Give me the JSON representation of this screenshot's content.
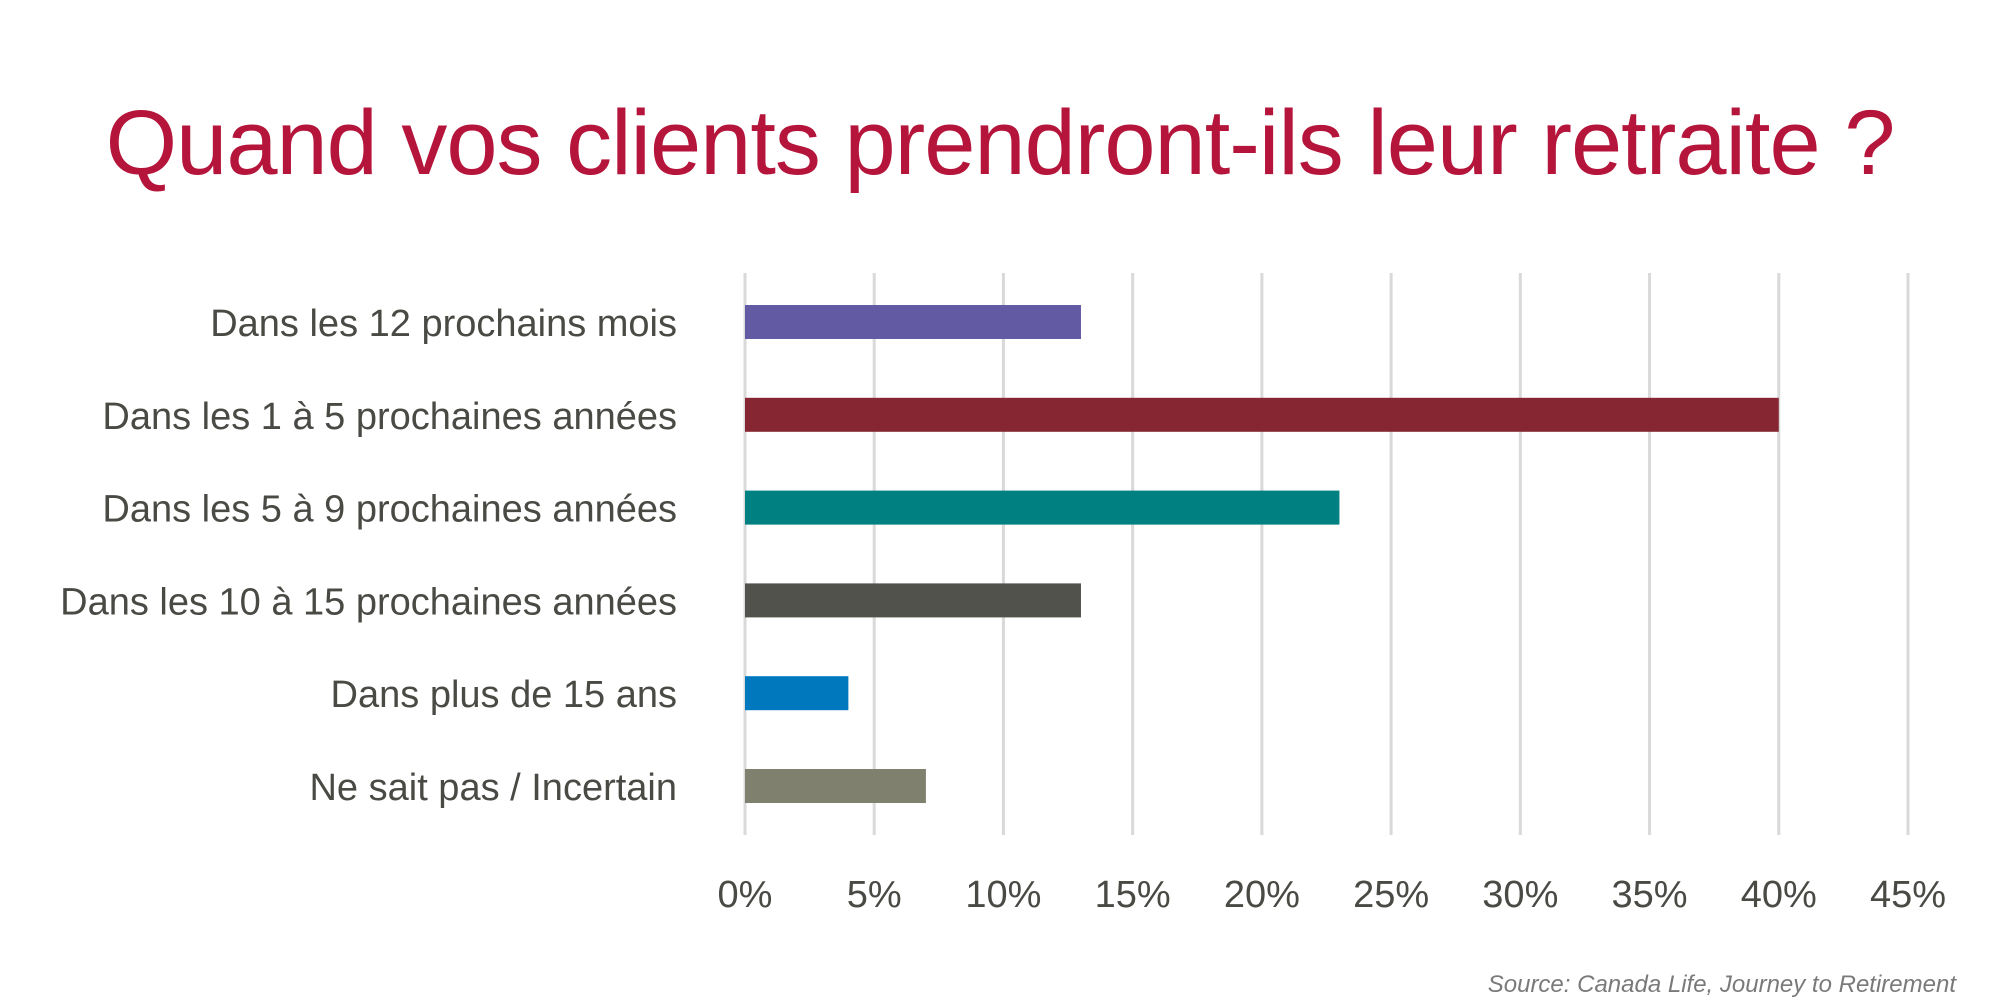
{
  "chart_data": {
    "type": "bar",
    "orientation": "horizontal",
    "title": "Quand vos clients prendront-ils leur retraite ?",
    "xlabel": "",
    "ylabel": "",
    "xlim": [
      0,
      45
    ],
    "x_ticks": [
      "0%",
      "5%",
      "10%",
      "15%",
      "20%",
      "25%",
      "30%",
      "35%",
      "40%",
      "45%"
    ],
    "x_tick_values": [
      0,
      5,
      10,
      15,
      20,
      25,
      30,
      35,
      40,
      45
    ],
    "grid": "vertical",
    "legend": "none",
    "categories": [
      "Dans les 12 prochains mois",
      "Dans les 1 à 5 prochaines années",
      "Dans les 5 à 9 prochaines années",
      "Dans les 10 à 15 prochaines années",
      "Dans plus de 15 ans",
      "Ne sait pas / Incertain"
    ],
    "values": [
      13,
      40,
      23,
      13,
      4,
      7
    ],
    "colors": [
      "#625ba3",
      "#862633",
      "#008080",
      "#51524b",
      "#0078be",
      "#80806f"
    ],
    "source": "Source: Canada Life, Journey to Retirement"
  },
  "style": {
    "title_color": "#b5153a",
    "label_color": "#4a4a45",
    "grid_color": "#d9d9d9"
  }
}
